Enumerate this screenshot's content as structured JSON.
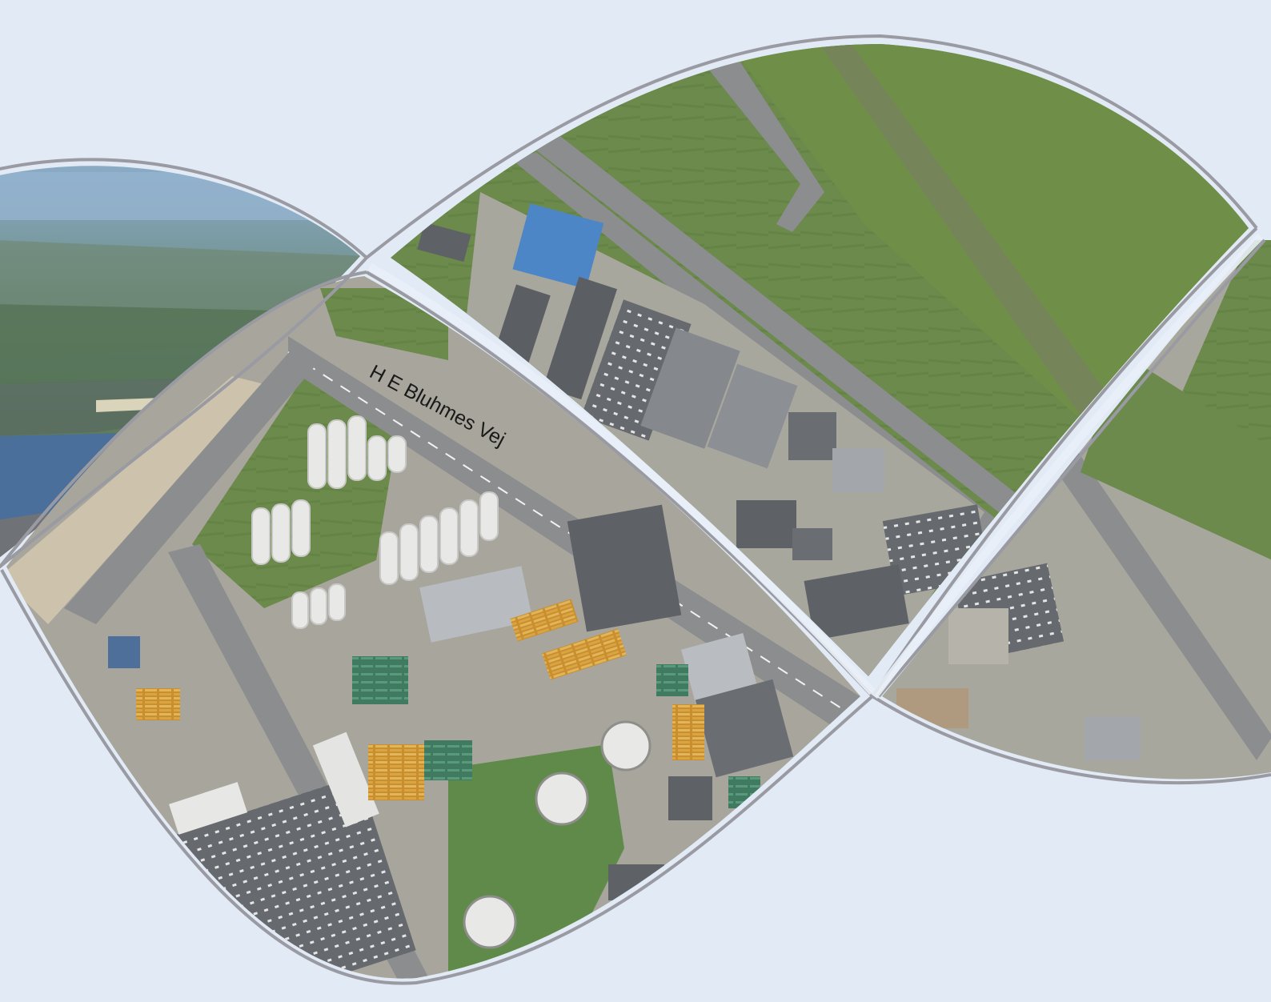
{
  "map": {
    "road_label": "H E Bluhmes Vej",
    "colors": {
      "background": "#e1eaf5",
      "frame_stroke": "#9a9aa2",
      "grass": "#6a8a4a",
      "grass_dark": "#58763c",
      "road": "#8c8d8f",
      "roof_dark": "#55585d",
      "roof_light": "#a3a6ab",
      "roof_blue": "#4d86c6",
      "sea": "#4a6f9a",
      "horizon": "#8fb0cf",
      "tank": "#e8e8e6",
      "timber": "#d9a441"
    }
  }
}
